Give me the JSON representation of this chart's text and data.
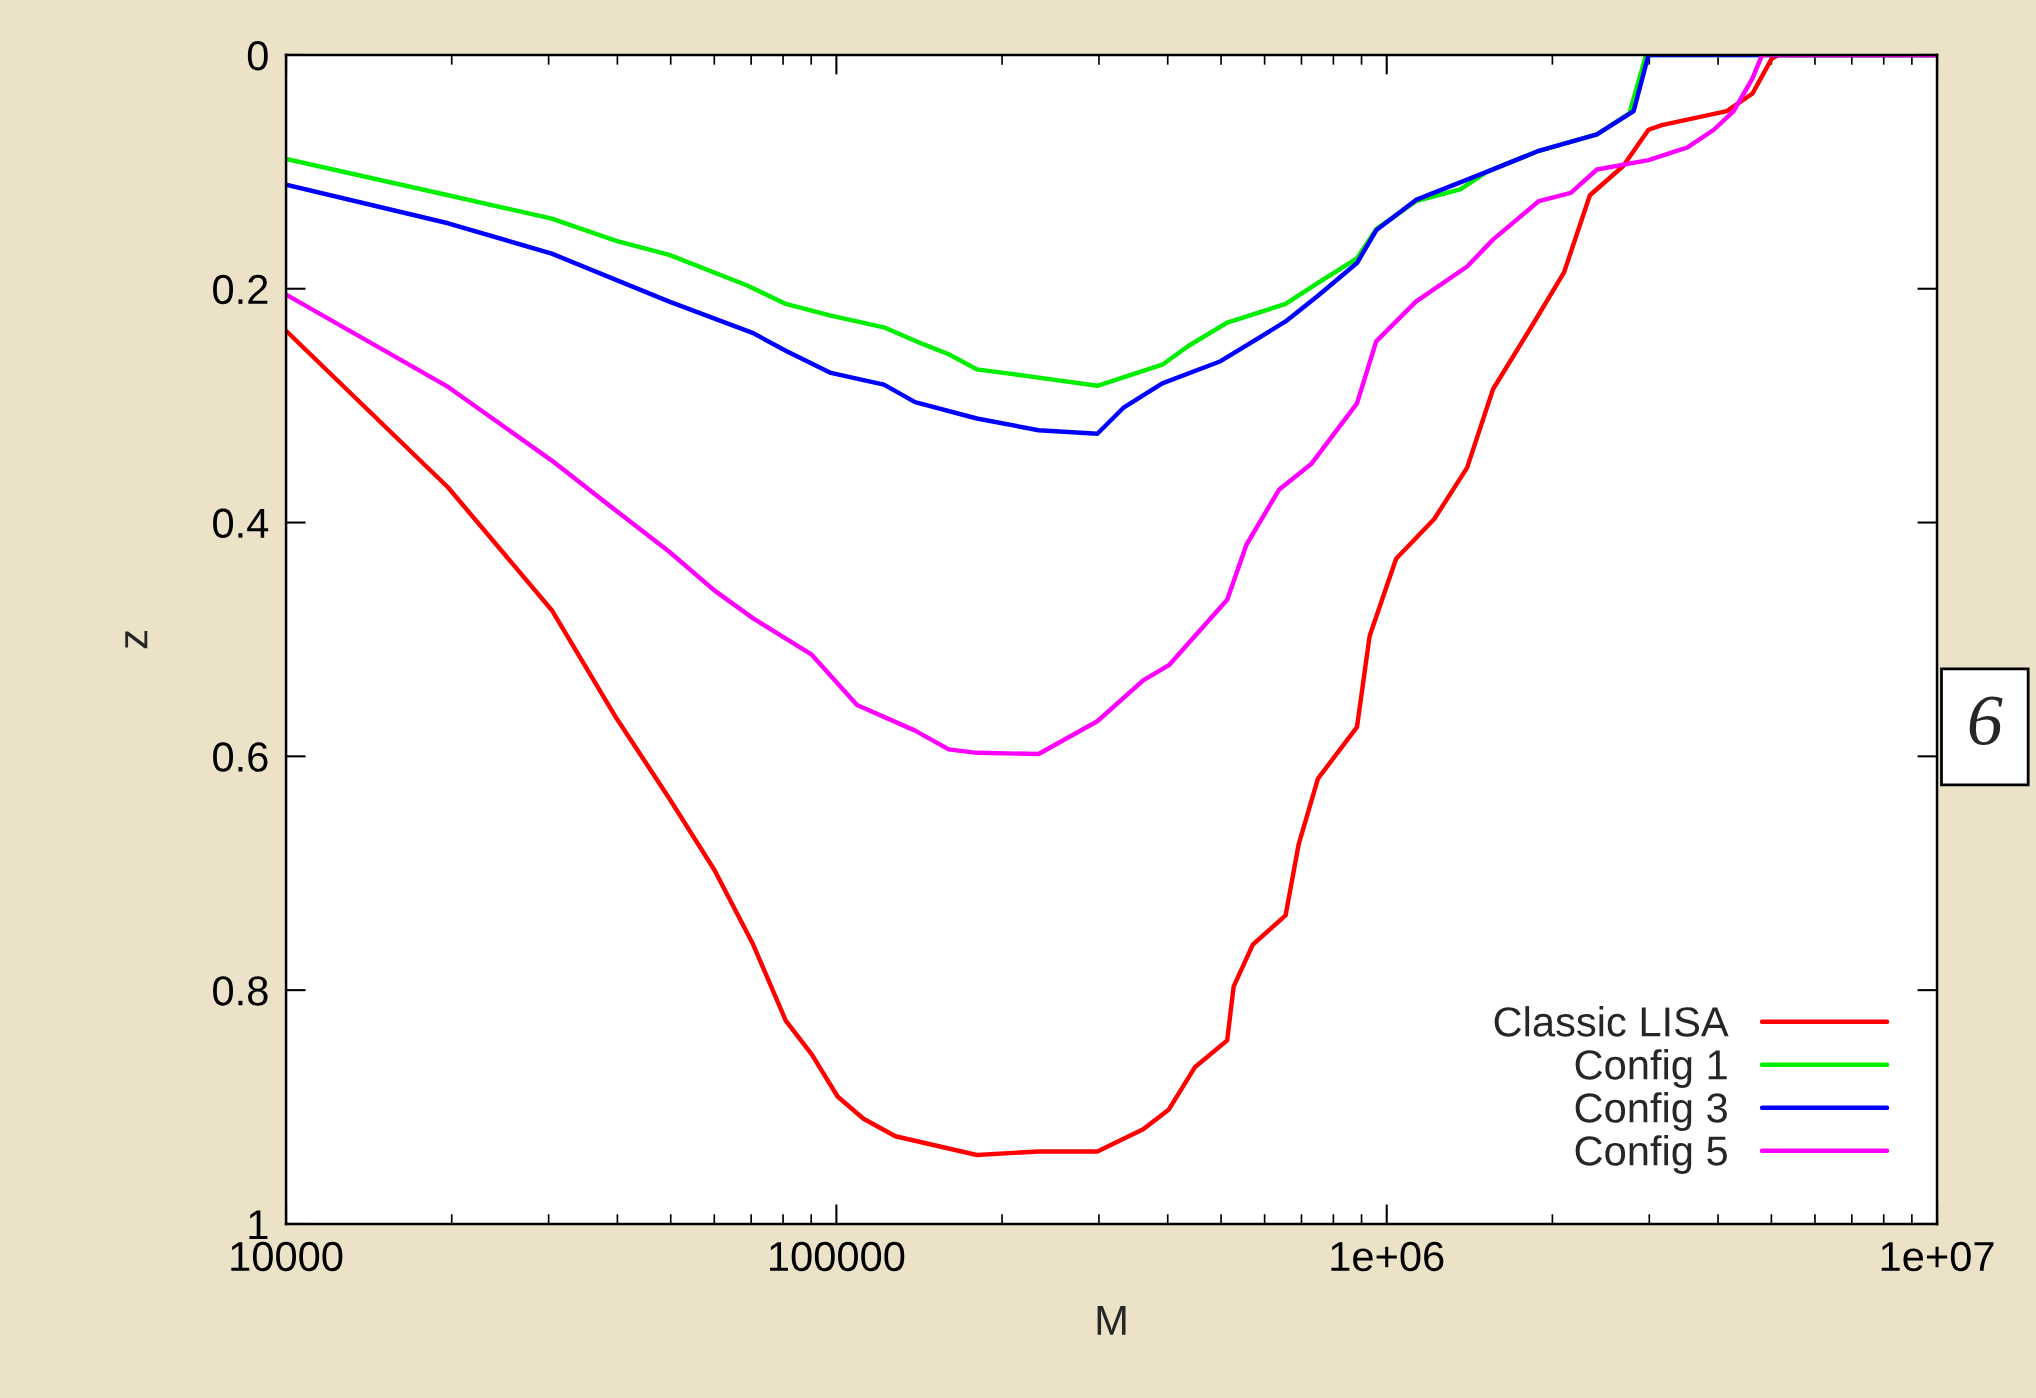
{
  "chart_data": {
    "type": "line",
    "xlabel": "M",
    "ylabel": "z",
    "log": "x",
    "xlim": [
      10000,
      10000000
    ],
    "xticks": [
      10000,
      100000,
      {
        "value": 1000000,
        "label": "1e+06"
      },
      {
        "value": 10000000,
        "label": "1e+07"
      }
    ],
    "ylim": [
      1,
      0
    ],
    "yticks": [
      0,
      0.2,
      0.4,
      0.6,
      0.8,
      1
    ],
    "grid": false,
    "legend": "bottom right",
    "annotations": [
      "6"
    ],
    "series": [
      {
        "name": "Classic LISA",
        "color": "#ff0000",
        "x": [
          10000,
          19700,
          30400,
          39800,
          49700,
          60000,
          70600,
          80900,
          90200,
          100500,
          112000,
          128000,
          180000,
          233000,
          298000,
          361000,
          402000,
          448000,
          513000,
          527000,
          571000,
          655000,
          692000,
          750000,
          883000,
          931000,
          1040000,
          1220000,
          1400000,
          1560000,
          1840000,
          2100000,
          2340000,
          2690000,
          2990000,
          3160000,
          4150000,
          4620000,
          5010000,
          5150000,
          10000000
        ],
        "values": [
          0.236,
          0.37,
          0.475,
          0.567,
          0.636,
          0.697,
          0.761,
          0.826,
          0.855,
          0.891,
          0.91,
          0.925,
          0.941,
          0.938,
          0.938,
          0.919,
          0.902,
          0.866,
          0.843,
          0.797,
          0.761,
          0.736,
          0.675,
          0.619,
          0.575,
          0.497,
          0.431,
          0.397,
          0.353,
          0.286,
          0.231,
          0.186,
          0.12,
          0.095,
          0.064,
          0.06,
          0.048,
          0.033,
          0.003,
          0,
          0
        ]
      },
      {
        "name": "Config 1",
        "color": "#00ee00",
        "x": [
          10000,
          19700,
          30400,
          39800,
          49700,
          68700,
          80900,
          97700,
          122000,
          143000,
          160000,
          180000,
          233000,
          298000,
          391000,
          436000,
          513000,
          655000,
          750000,
          883000,
          957000,
          1130000,
          1360000,
          1520000,
          1890000,
          2410000,
          2760000,
          2960000,
          10000000
        ],
        "values": [
          0.089,
          0.12,
          0.14,
          0.159,
          0.171,
          0.197,
          0.213,
          0.223,
          0.233,
          0.247,
          0.256,
          0.269,
          0.276,
          0.283,
          0.265,
          0.249,
          0.229,
          0.213,
          0.195,
          0.174,
          0.149,
          0.125,
          0.115,
          0.1,
          0.082,
          0.068,
          0.05,
          0,
          0
        ]
      },
      {
        "name": "Config 3",
        "color": "#0000ff",
        "x": [
          10000,
          19700,
          30400,
          49700,
          70600,
          80900,
          97700,
          122000,
          139000,
          180000,
          233000,
          298000,
          332000,
          391000,
          499000,
          655000,
          750000,
          883000,
          957000,
          1130000,
          1520000,
          1890000,
          2410000,
          2810000,
          2990000,
          10000000
        ],
        "values": [
          0.111,
          0.144,
          0.17,
          0.211,
          0.238,
          0.253,
          0.272,
          0.282,
          0.297,
          0.311,
          0.321,
          0.324,
          0.302,
          0.281,
          0.262,
          0.228,
          0.206,
          0.178,
          0.15,
          0.124,
          0.1,
          0.082,
          0.068,
          0.048,
          0,
          0
        ]
      },
      {
        "name": "Config 5",
        "color": "#ff00ff",
        "x": [
          10000,
          19700,
          30400,
          39800,
          49700,
          60000,
          70600,
          90200,
          109000,
          139000,
          160000,
          180000,
          233000,
          298000,
          361000,
          402000,
          513000,
          556000,
          637000,
          729000,
          883000,
          957000,
          1130000,
          1400000,
          1560000,
          1890000,
          2160000,
          2410000,
          2990000,
          3520000,
          3930000,
          4270000,
          4620000,
          4810000,
          10000000
        ],
        "values": [
          0.205,
          0.284,
          0.347,
          0.39,
          0.425,
          0.458,
          0.482,
          0.513,
          0.556,
          0.578,
          0.594,
          0.597,
          0.598,
          0.57,
          0.535,
          0.522,
          0.466,
          0.419,
          0.372,
          0.35,
          0.298,
          0.245,
          0.211,
          0.181,
          0.158,
          0.125,
          0.118,
          0.098,
          0.09,
          0.079,
          0.064,
          0.048,
          0.02,
          0,
          0
        ]
      }
    ]
  }
}
